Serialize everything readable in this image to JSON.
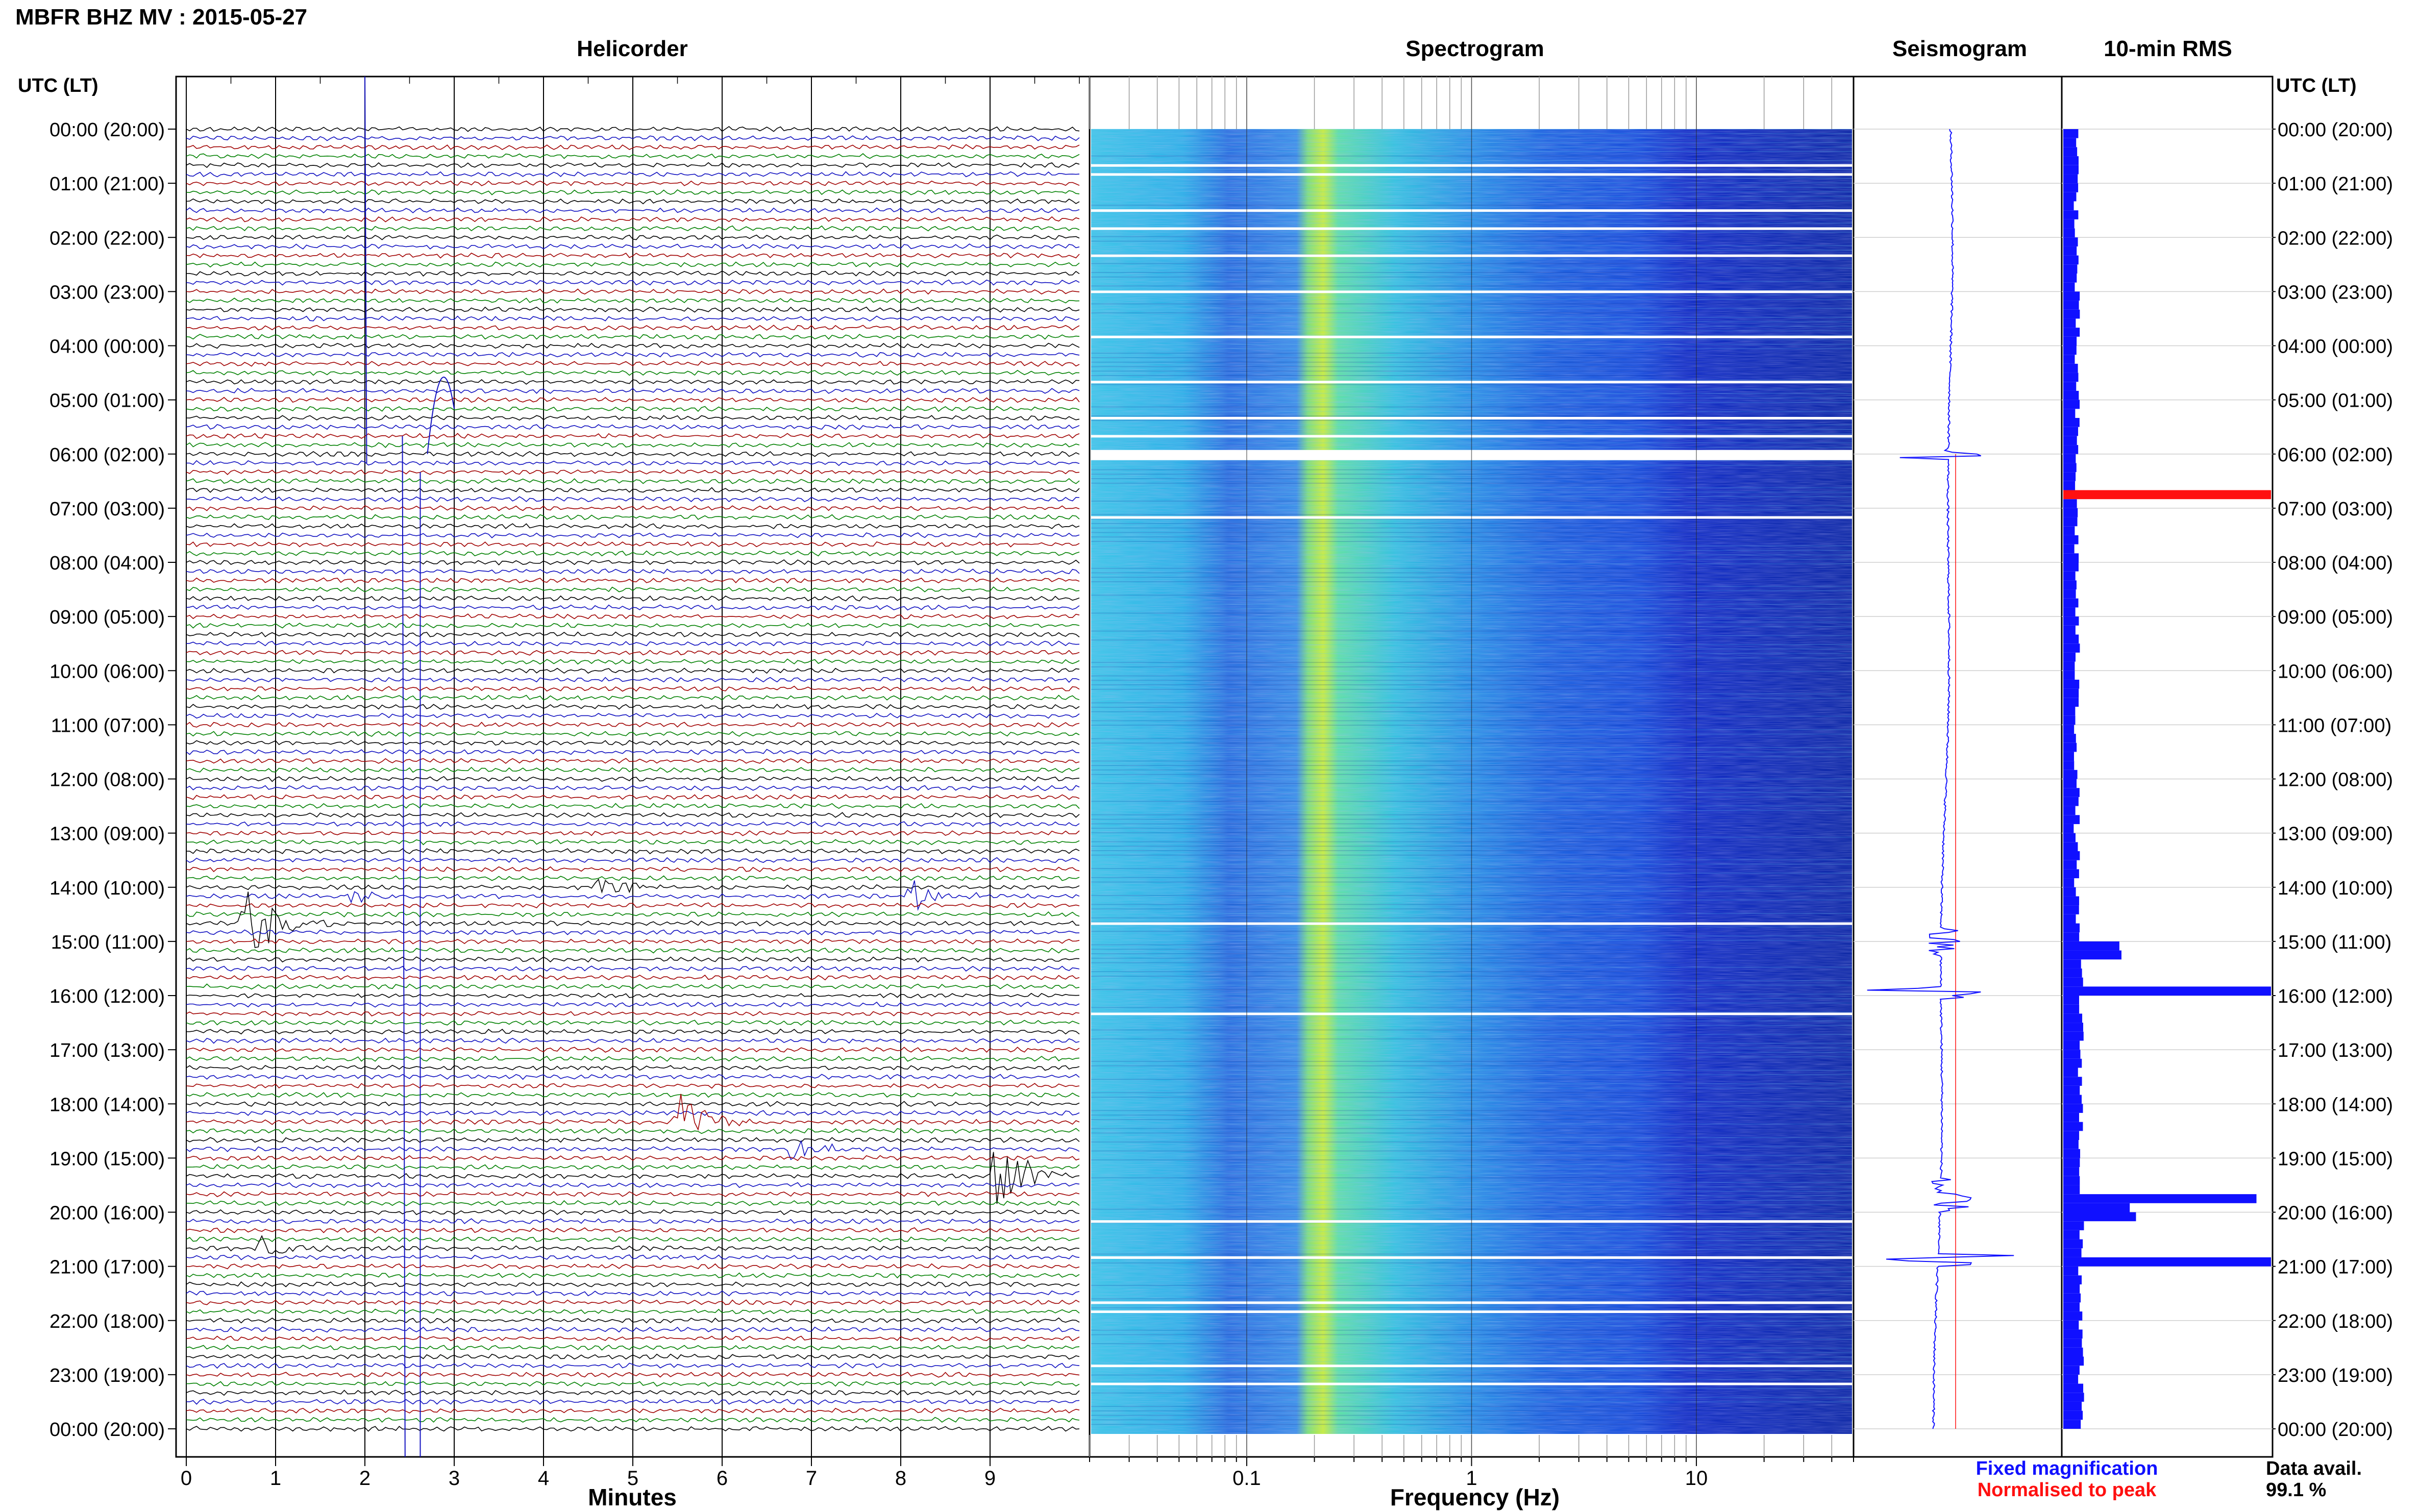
{
  "header": {
    "title": "MBFR BHZ MV : 2015-05-27",
    "utc_label_left": "UTC (LT)",
    "utc_label_right": "UTC (LT)"
  },
  "panels": {
    "helicorder": "Helicorder",
    "spectrogram": "Spectrogram",
    "seismogram": "Seismogram",
    "rms": "10-min RMS"
  },
  "axes": {
    "helicorder_xlabel": "Minutes",
    "spectrogram_xlabel": "Frequency (Hz)"
  },
  "legend": {
    "fixed": "Fixed magnification",
    "normalised": "Normalised to peak",
    "fixed_color": "#1010ff",
    "normalised_color": "#ff1010"
  },
  "data_avail": {
    "label": "Data avail.",
    "value": "99.1 %"
  },
  "chart_data": [
    {
      "type": "line",
      "panel": "Helicorder",
      "xlabel": "Minutes",
      "x_ticks": [
        "0",
        "1",
        "2",
        "3",
        "4",
        "5",
        "6",
        "7",
        "8",
        "9"
      ],
      "xlim": [
        0,
        10
      ],
      "y_ticks": [
        "00:00 (20:00)",
        "01:00 (21:00)",
        "02:00 (22:00)",
        "03:00 (23:00)",
        "04:00 (00:00)",
        "05:00 (01:00)",
        "06:00 (02:00)",
        "07:00 (03:00)",
        "08:00 (04:00)",
        "09:00 (05:00)",
        "10:00 (06:00)",
        "11:00 (07:00)",
        "12:00 (08:00)",
        "13:00 (09:00)",
        "14:00 (10:00)",
        "15:00 (11:00)",
        "16:00 (12:00)",
        "17:00 (13:00)",
        "18:00 (14:00)",
        "19:00 (15:00)",
        "20:00 (16:00)",
        "21:00 (17:00)",
        "22:00 (18:00)",
        "23:00 (19:00)",
        "00:00 (20:00)"
      ],
      "trace_colors": [
        "#000000",
        "#1010c0",
        "#a00000",
        "#008000"
      ],
      "events": [
        {
          "row": 88,
          "minute": 0.6,
          "amplitude": 3.0
        },
        {
          "row": 85,
          "minute": 1.8,
          "amplitude": 0.6
        },
        {
          "row": 84,
          "minute": 4.6,
          "amplitude": 0.8
        },
        {
          "row": 85,
          "minute": 8.1,
          "amplitude": 0.9
        },
        {
          "row": 116,
          "minute": 9.05,
          "amplitude": 2.5
        },
        {
          "row": 113,
          "minute": 6.8,
          "amplitude": 0.7
        },
        {
          "row": 110,
          "minute": 5.5,
          "amplitude": 1.8
        },
        {
          "row": 124,
          "minute": 0.85,
          "amplitude": 0.7
        }
      ]
    },
    {
      "type": "heatmap",
      "panel": "Spectrogram",
      "xlabel": "Frequency (Hz)",
      "x_scale": "log",
      "x_ticks": [
        "0.1",
        "1",
        "10"
      ],
      "xlim": [
        0.02,
        50
      ],
      "peak_band_hz": 0.25
    },
    {
      "type": "line",
      "panel": "Seismogram",
      "series": [
        {
          "name": "Fixed magnification",
          "color": "#1010ff"
        },
        {
          "name": "Normalised to peak",
          "color": "#ff1010"
        }
      ]
    },
    {
      "type": "bar",
      "panel": "10-min RMS",
      "orientation": "horizontal",
      "bins": 144,
      "peaks": [
        {
          "time": "06:40",
          "value": 1.0,
          "color": "#ff1010"
        },
        {
          "time": "15:50",
          "value": 1.0
        },
        {
          "time": "20:50",
          "value": 1.0
        },
        {
          "time": "19:40",
          "value": 0.93
        },
        {
          "time": "15:00",
          "value": 0.27
        },
        {
          "time": "15:10",
          "value": 0.28
        },
        {
          "time": "20:00",
          "value": 0.35
        },
        {
          "time": "19:50",
          "value": 0.32
        }
      ]
    }
  ]
}
